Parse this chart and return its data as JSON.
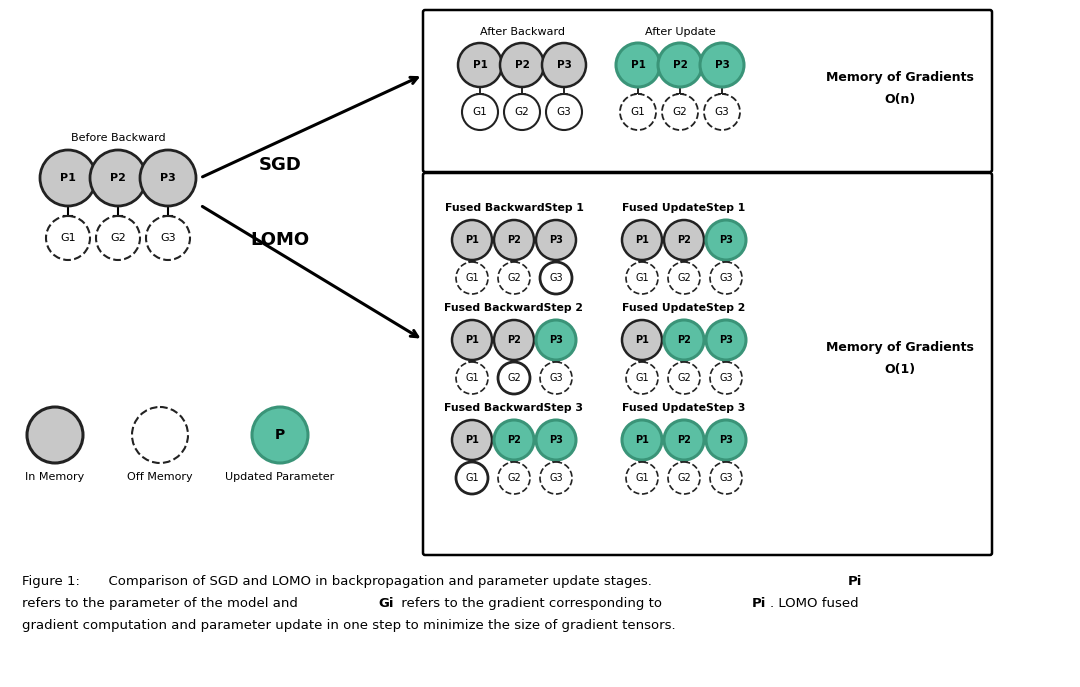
{
  "fig_width": 10.8,
  "fig_height": 6.87,
  "dpi": 100,
  "background_color": "#ffffff",
  "green_fill": "#5bbfa3",
  "green_edge": "#3a9478",
  "gray_fill": "#c8c8c8",
  "white_fill": "#ffffff",
  "black_edge": "#222222",
  "dark_edge": "#111111",
  "bb_label": "Before Backward",
  "sgd_label": "SGD",
  "lomo_label": "LOMO",
  "sgd_box_title_left": "After Backward",
  "sgd_box_title_right": "After Update",
  "sgd_mem_label1": "Memory of Gradients",
  "sgd_mem_label2": "O(n)",
  "lomo_mem_label1": "Memory of Gradients",
  "lomo_mem_label2": "O(1)",
  "legend_in_memory": "In Memory",
  "legend_off_memory": "Off Memory",
  "legend_updated": "Updated Parameter",
  "cap_prefix": "Figure 1:",
  "cap_main": "  Comparison of SGD and LOMO in backpropagation and parameter update stages.  ",
  "cap_pi1": "Pi",
  "cap_line2a": "refers to the parameter of the model and ",
  "cap_gi": "Gi",
  "cap_line2b": " refers to the gradient corresponding to ",
  "cap_pi2": "Pi",
  "cap_line2c": ". LOMO fused",
  "cap_line3": "gradient computation and parameter update in one step to minimize the size of gradient tensors."
}
